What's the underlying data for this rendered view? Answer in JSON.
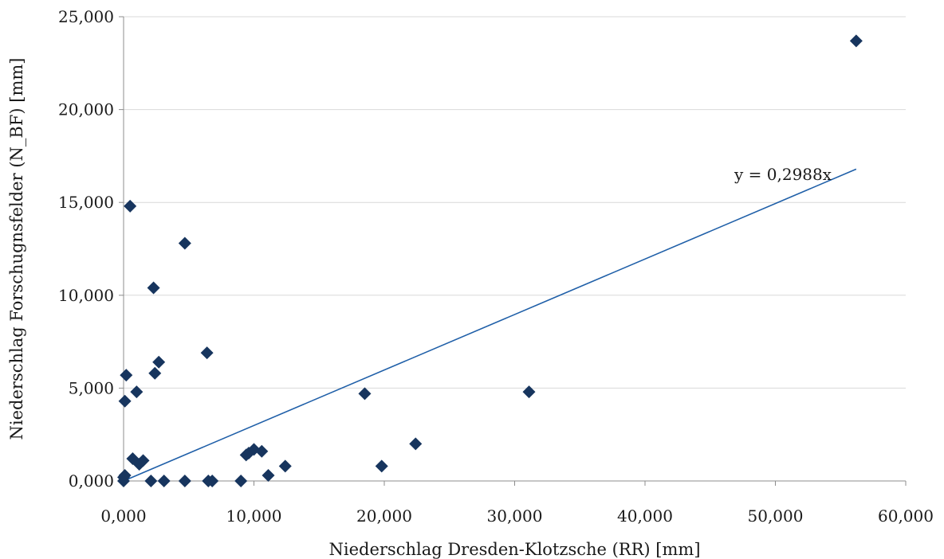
{
  "chart_data": {
    "type": "scatter",
    "xlabel": "Niederschlag Dresden-Klotzsche (RR) [mm]",
    "ylabel": "Niederschlag Forschugnsfelder (N_BF) [mm]",
    "xlim": [
      0,
      60
    ],
    "ylim": [
      0,
      25
    ],
    "x_ticks": [
      0,
      10,
      20,
      30,
      40,
      50,
      60
    ],
    "y_ticks": [
      0,
      5,
      10,
      15,
      20,
      25
    ],
    "x_tick_labels": [
      "0,000",
      "10,000",
      "20,000",
      "30,000",
      "40,000",
      "50,000",
      "60,000"
    ],
    "y_tick_labels": [
      "0,000",
      "5,000",
      "10,000",
      "15,000",
      "20,000",
      "25,000"
    ],
    "grid": "horizontal",
    "legend": "none",
    "marker": "diamond",
    "colors": {
      "points": "#17355e",
      "trendline": "#1f5fa8",
      "grid": "#d9d9d9",
      "axis": "#8c8c8c"
    },
    "series": [
      {
        "values": [
          [
            0.0,
            0.0
          ],
          [
            0.0,
            0.2
          ],
          [
            0.1,
            0.3
          ],
          [
            0.1,
            4.3
          ],
          [
            0.2,
            5.7
          ],
          [
            0.5,
            14.8
          ],
          [
            0.7,
            1.2
          ],
          [
            1.0,
            4.8
          ],
          [
            1.2,
            0.9
          ],
          [
            1.5,
            1.1
          ],
          [
            2.1,
            0.0
          ],
          [
            2.3,
            10.4
          ],
          [
            2.4,
            5.8
          ],
          [
            2.7,
            6.4
          ],
          [
            3.1,
            0.0
          ],
          [
            4.7,
            12.8
          ],
          [
            4.7,
            0.0
          ],
          [
            6.4,
            6.9
          ],
          [
            6.5,
            0.0
          ],
          [
            6.8,
            0.0
          ],
          [
            9.0,
            0.0
          ],
          [
            9.4,
            1.4
          ],
          [
            9.6,
            1.5
          ],
          [
            10.0,
            1.7
          ],
          [
            10.6,
            1.6
          ],
          [
            11.1,
            0.3
          ],
          [
            12.4,
            0.8
          ],
          [
            18.5,
            4.7
          ],
          [
            19.8,
            0.8
          ],
          [
            22.4,
            2.0
          ],
          [
            31.1,
            4.8
          ],
          [
            56.2,
            23.7
          ]
        ]
      }
    ],
    "trendline": {
      "slope": 0.2988,
      "x_range": [
        0,
        56.2
      ],
      "label": "y = 0,2988x"
    }
  }
}
